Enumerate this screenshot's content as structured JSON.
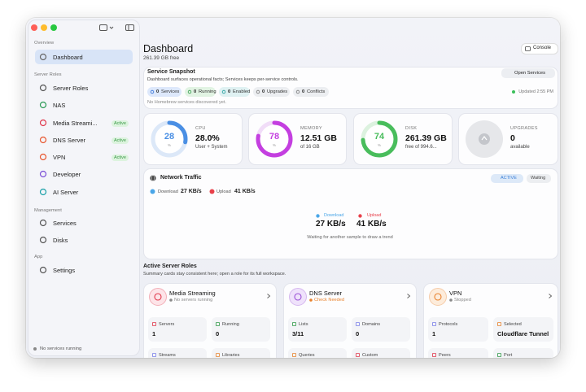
{
  "sidebar": {
    "sections": [
      {
        "title": "Overview",
        "items": [
          {
            "label": "Dashboard"
          }
        ]
      },
      {
        "title": "Server Roles",
        "items": [
          {
            "label": "Server Roles"
          },
          {
            "label": "NAS"
          },
          {
            "label": "Media Streami...",
            "badge": "Active"
          },
          {
            "label": "DNS Server",
            "badge": "Active"
          },
          {
            "label": "VPN",
            "badge": "Active"
          },
          {
            "label": "Developer"
          },
          {
            "label": "AI Server"
          }
        ]
      },
      {
        "title": "Management",
        "items": [
          {
            "label": "Services"
          },
          {
            "label": "Disks"
          }
        ]
      },
      {
        "title": "App",
        "items": [
          {
            "label": "Settings"
          }
        ]
      }
    ],
    "footer": "No services running"
  },
  "header": {
    "title": "Dashboard",
    "subtitle": "261.39 GB free",
    "button": "Console"
  },
  "snapshot": {
    "title": "Service Snapshot",
    "description": "Dashboard surfaces operational facts; Services keeps per-service controls.",
    "button": "Open Services",
    "pills": [
      {
        "count": 0,
        "label": "Services"
      },
      {
        "count": 0,
        "label": "Running"
      },
      {
        "count": 0,
        "label": "Enabled"
      },
      {
        "count": 0,
        "label": "Upgrades"
      },
      {
        "count": 0,
        "label": "Conflicts"
      }
    ],
    "updated": "Updated 2:55 PM",
    "note": "No Homebrew services discovered yet."
  },
  "gauges": [
    {
      "label": "CPU",
      "value": 28,
      "unit": "%",
      "main": "28.0%",
      "sub": "User + System"
    },
    {
      "label": "MEMORY",
      "value": 78,
      "unit": "%",
      "main": "12.51 GB",
      "sub": "of 16 GB"
    },
    {
      "label": "DISK",
      "value": 74,
      "unit": "%",
      "main": "261.39 GB",
      "sub": "free of 994.6..."
    },
    {
      "label": "UPGRADES",
      "main": 0,
      "sub": "available"
    }
  ],
  "traffic": {
    "title": "Network Traffic",
    "badges": [
      "ACTIVE",
      "Waiting"
    ],
    "download_label": "Download",
    "download": "27 KB/s",
    "upload_label": "Upload",
    "upload": "41 KB/s",
    "note": "Waiting for another sample to draw a trend"
  },
  "roles": {
    "title": "Active Server Roles",
    "description": "Summary cards stay consistent here; open a role for its full workspace.",
    "cards": [
      {
        "title": "Media Streaming",
        "status": "No servers running",
        "stats": [
          {
            "label": "Servers",
            "value": 1
          },
          {
            "label": "Running",
            "value": 0
          },
          {
            "label": "Streams"
          },
          {
            "label": "Libraries"
          }
        ]
      },
      {
        "title": "DNS Server",
        "status": "Check Needed",
        "stats": [
          {
            "label": "Lists",
            "value": "3/11"
          },
          {
            "label": "Domains",
            "value": 0
          },
          {
            "label": "Queries"
          },
          {
            "label": "Custom"
          }
        ]
      },
      {
        "title": "VPN",
        "status": "Stopped",
        "stats": [
          {
            "label": "Protocols",
            "value": 1
          },
          {
            "label": "Selected",
            "value": "Cloudflare Tunnel"
          },
          {
            "label": "Peers"
          },
          {
            "label": "Port"
          }
        ]
      }
    ]
  }
}
